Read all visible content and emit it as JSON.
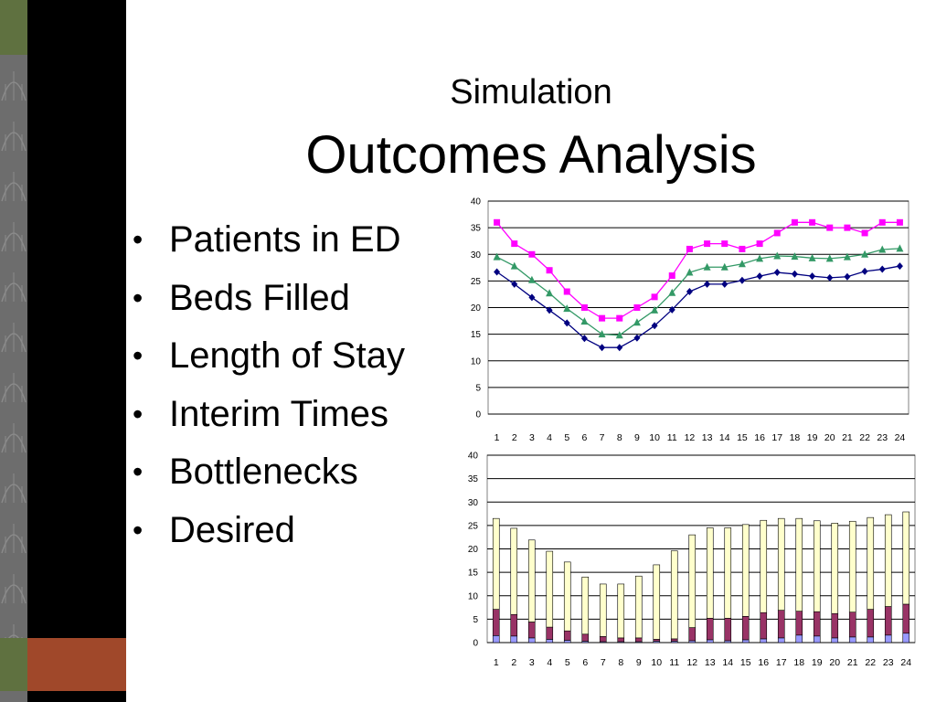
{
  "slide": {
    "title_line1": "Simulation",
    "title_line2": "Outcomes Analysis",
    "bullet_char": "•",
    "bullets": [
      "Patients in ED",
      "Beds Filled",
      "Length of Stay",
      "Interim Times",
      "Bottlenecks",
      "Desired"
    ]
  },
  "colors": {
    "sidebar": "#000000",
    "olive": "#5f7140",
    "accent": "#a0482a",
    "navy_series": "#000080",
    "magenta_series": "#ff00ff",
    "green_series": "#339966",
    "bar_blue": "#9999ff",
    "bar_maroon": "#993366",
    "bar_cream": "#ffffcc"
  },
  "chart_data": [
    {
      "type": "line",
      "x": [
        1,
        2,
        3,
        4,
        5,
        6,
        7,
        8,
        9,
        10,
        11,
        12,
        13,
        14,
        15,
        16,
        17,
        18,
        19,
        20,
        21,
        22,
        23,
        24
      ],
      "ylim": [
        0,
        40
      ],
      "yticks": [
        0,
        5,
        10,
        15,
        20,
        25,
        30,
        35,
        40
      ],
      "grid": true,
      "series": [
        {
          "marker": "square",
          "color": "#ff00ff",
          "values": [
            36,
            32,
            30,
            27,
            23,
            20,
            18,
            18,
            20,
            22,
            26,
            31,
            32,
            32,
            31,
            32,
            34,
            36,
            36,
            35,
            35,
            34,
            36,
            36
          ]
        },
        {
          "marker": "triangle",
          "color": "#339966",
          "values": [
            29.5,
            27.8,
            25.2,
            22.7,
            19.8,
            17.4,
            15,
            14.8,
            17.2,
            19.5,
            22.8,
            26.6,
            27.6,
            27.6,
            28.2,
            29.2,
            29.7,
            29.6,
            29.3,
            29.2,
            29.5,
            30,
            30.9,
            31.1
          ]
        },
        {
          "marker": "diamond",
          "color": "#000080",
          "values": [
            26.7,
            24.4,
            21.9,
            19.5,
            17.1,
            14.2,
            12.5,
            12.5,
            14.3,
            16.6,
            19.6,
            23,
            24.4,
            24.4,
            25.1,
            25.9,
            26.6,
            26.3,
            25.9,
            25.6,
            25.8,
            26.8,
            27.2,
            27.8
          ]
        }
      ]
    },
    {
      "type": "bar",
      "stacked": true,
      "categories": [
        "1",
        "2",
        "3",
        "4",
        "5",
        "6",
        "7",
        "8",
        "9",
        "10",
        "11",
        "12",
        "13",
        "14",
        "15",
        "16",
        "17",
        "18",
        "19",
        "20",
        "21",
        "22",
        "23",
        "24"
      ],
      "ylim": [
        0,
        40
      ],
      "yticks": [
        0,
        5,
        10,
        15,
        20,
        25,
        30,
        35,
        40
      ],
      "grid": true,
      "series": [
        {
          "color": "#9999ff",
          "values": [
            1.5,
            1.4,
            1,
            0.7,
            0.5,
            0.3,
            0.2,
            0.2,
            0.2,
            0.3,
            0.3,
            0.4,
            0.6,
            0.4,
            0.6,
            0.8,
            1,
            1.6,
            1.4,
            1,
            1.2,
            1.2,
            1.6,
            2
          ]
        },
        {
          "color": "#993366",
          "values": [
            5.6,
            4.6,
            3.4,
            2.6,
            2,
            1.5,
            1.1,
            0.8,
            0.8,
            0.4,
            0.5,
            2.8,
            4.6,
            4.8,
            5,
            5.6,
            5.9,
            5.1,
            5.2,
            5.2,
            5.3,
            5.9,
            6.1,
            6.2
          ]
        },
        {
          "color": "#ffffcc",
          "values": [
            19.4,
            18.4,
            17.5,
            16.2,
            14.7,
            12.2,
            11.2,
            11.5,
            13.2,
            15.9,
            18.8,
            19.8,
            19.3,
            19.3,
            19.6,
            19.7,
            19.6,
            19.8,
            19.4,
            19.3,
            19.4,
            19.6,
            19.6,
            19.7
          ]
        }
      ]
    }
  ]
}
